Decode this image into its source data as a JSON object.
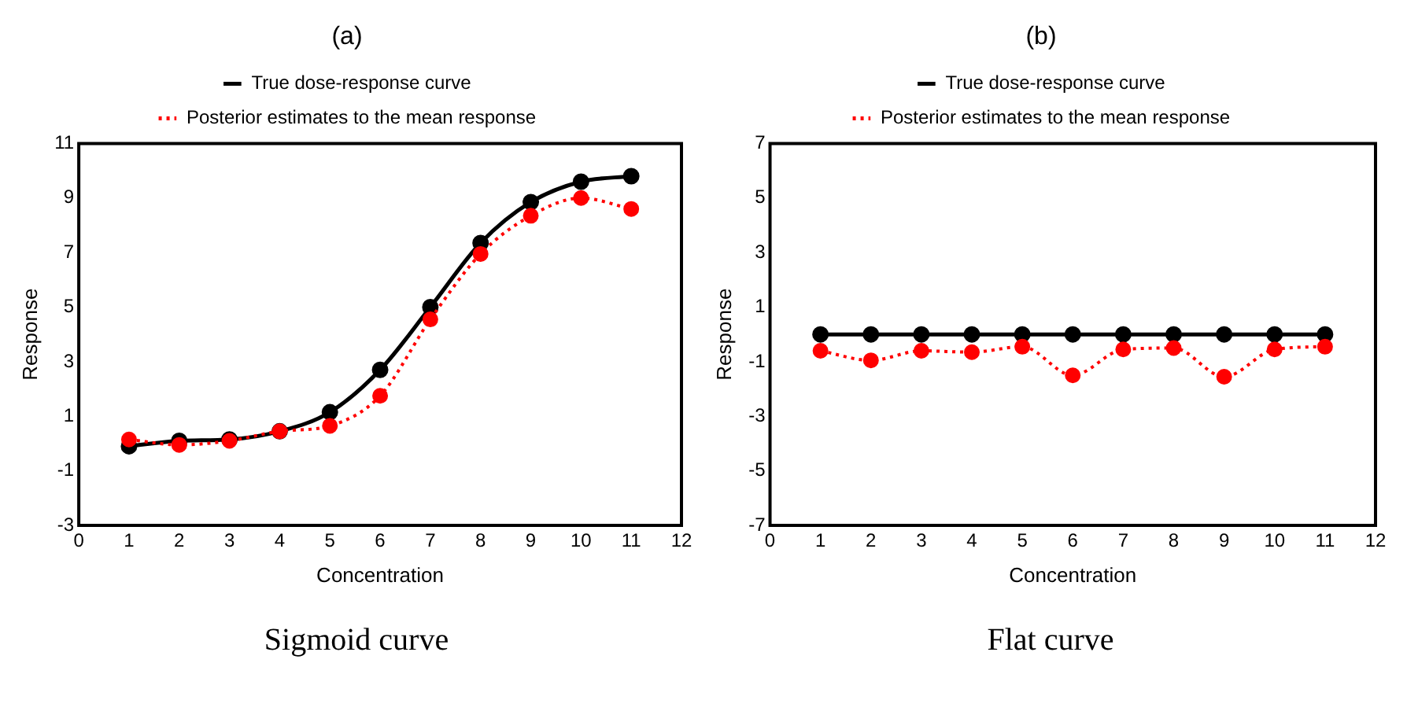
{
  "chart_data": [
    {
      "type": "line",
      "title": "(a)",
      "xlabel": "Concentration",
      "ylabel": "Response",
      "x": [
        1,
        2,
        3,
        4,
        5,
        6,
        7,
        8,
        9,
        10,
        11
      ],
      "xlim": [
        0,
        12
      ],
      "xticks": [
        0,
        1,
        2,
        3,
        4,
        5,
        6,
        7,
        8,
        9,
        10,
        11,
        12
      ],
      "ylim": [
        -3,
        11
      ],
      "yticks": [
        -3,
        -1,
        1,
        3,
        5,
        7,
        9,
        11
      ],
      "grid": false,
      "legend": "top",
      "marker": "circle",
      "annotations": [
        "Sigmoid curve"
      ],
      "series": [
        {
          "name": "True dose-response curve",
          "color": "#000000",
          "line_style": "solid",
          "values": [
            -0.1,
            0.1,
            0.15,
            0.45,
            1.15,
            2.7,
            5.0,
            7.35,
            8.85,
            9.6,
            9.8
          ]
        },
        {
          "name": "Posterior estimates to the mean response",
          "color": "#ff0000",
          "line_style": "dotted",
          "values": [
            0.15,
            -0.05,
            0.1,
            0.45,
            0.65,
            1.75,
            4.55,
            6.95,
            8.35,
            9.0,
            8.6
          ]
        }
      ]
    },
    {
      "type": "line",
      "title": "(b)",
      "xlabel": "Concentration",
      "ylabel": "Response",
      "x": [
        1,
        2,
        3,
        4,
        5,
        6,
        7,
        8,
        9,
        10,
        11
      ],
      "xlim": [
        0,
        12
      ],
      "xticks": [
        0,
        1,
        2,
        3,
        4,
        5,
        6,
        7,
        8,
        9,
        10,
        11,
        12
      ],
      "ylim": [
        -7,
        7
      ],
      "yticks": [
        -7,
        -5,
        -3,
        -1,
        1,
        3,
        5,
        7
      ],
      "grid": false,
      "legend": "top",
      "marker": "circle",
      "annotations": [
        "Flat curve"
      ],
      "series": [
        {
          "name": "True dose-response curve",
          "color": "#000000",
          "line_style": "solid",
          "values": [
            0,
            0,
            0,
            0,
            0,
            0,
            0,
            0,
            0,
            0,
            0
          ]
        },
        {
          "name": "Posterior estimates to the mean response",
          "color": "#ff0000",
          "line_style": "dotted",
          "values": [
            -0.6,
            -0.95,
            -0.6,
            -0.65,
            -0.45,
            -1.5,
            -0.55,
            -0.5,
            -1.55,
            -0.55,
            -0.45
          ]
        }
      ]
    }
  ]
}
